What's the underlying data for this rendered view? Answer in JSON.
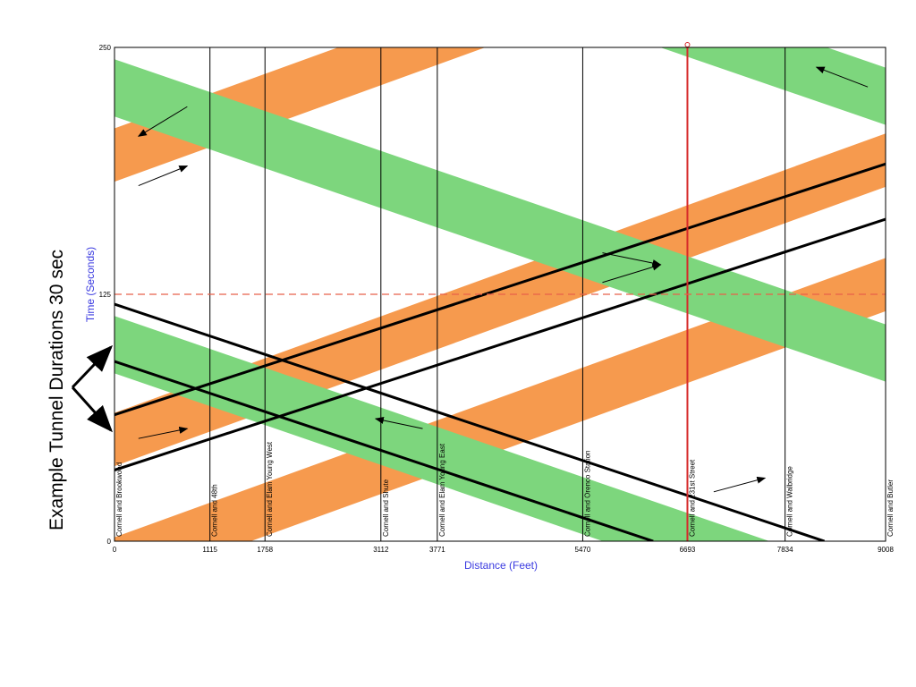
{
  "chart_data": {
    "type": "time-space diagram",
    "xlabel": "Distance (Feet)",
    "ylabel": "Time (Seconds)",
    "xlim": [
      0,
      9008
    ],
    "ylim": [
      0,
      250
    ],
    "y_ticks": [
      0,
      125,
      250
    ],
    "x_ticks": [
      0,
      1115,
      1758,
      3112,
      3771,
      5470,
      6693,
      7834,
      9008
    ],
    "intersections": [
      {
        "name": "Cornell and Brookwood",
        "x": 0
      },
      {
        "name": "Cornell and 48th",
        "x": 1115
      },
      {
        "name": "Cornell and Elam Young West",
        "x": 1758
      },
      {
        "name": "Cornell and Shute",
        "x": 3112
      },
      {
        "name": "Cornell and Elam Young East",
        "x": 3771
      },
      {
        "name": "Cornell and Orenco Station",
        "x": 5470
      },
      {
        "name": "Cornell and 231st Street",
        "x": 6693
      },
      {
        "name": "Cornell and Walbridge",
        "x": 7834
      },
      {
        "name": "Cornell and Butler",
        "x": 9008
      }
    ],
    "reference_time_line": 125,
    "selected_intersection_x": 6693,
    "bands": [
      {
        "direction": "eastbound",
        "color": "#f5913f",
        "slope": 0.0157,
        "lower_intercepts": [
          38,
          182,
          -25
        ],
        "width": 27
      },
      {
        "direction": "westbound",
        "color": "#7dd67d",
        "slope": -0.0149,
        "lower_intercepts": [
          215,
          85,
          345
        ],
        "width": 29
      }
    ],
    "highlighted_bands": [
      {
        "direction": "eastbound",
        "lower": [
          0,
          36,
          9008,
          163
        ],
        "upper": [
          0,
          64,
          9008,
          191
        ]
      },
      {
        "direction": "westbound",
        "lower": [
          0,
          91,
          6293,
          0
        ],
        "upper": [
          0,
          120,
          8293,
          0
        ]
      }
    ],
    "direction_arrows": [
      {
        "from": [
          280,
          180
        ],
        "to": [
          850,
          190
        ],
        "dir": "eastbound"
      },
      {
        "from": [
          850,
          220
        ],
        "to": [
          280,
          205
        ],
        "dir": "westbound"
      },
      {
        "from": [
          280,
          52
        ],
        "to": [
          850,
          57
        ],
        "dir": "eastbound"
      },
      {
        "from": [
          3600,
          57
        ],
        "to": [
          3050,
          62
        ],
        "dir": "westbound"
      },
      {
        "from": [
          5700,
          131
        ],
        "to": [
          6380,
          140
        ],
        "dir": "eastbound"
      },
      {
        "from": [
          5700,
          146
        ],
        "to": [
          6380,
          140
        ],
        "dir": "eastbound"
      },
      {
        "from": [
          7000,
          25
        ],
        "to": [
          7600,
          32
        ],
        "dir": "eastbound"
      },
      {
        "from": [
          8800,
          230
        ],
        "to": [
          8200,
          240
        ],
        "dir": "westbound"
      }
    ],
    "colors": {
      "eastbound": "#f5913f",
      "westbound": "#7dd67d",
      "reference": "#e8604a",
      "selected": "#d62a2a",
      "axis_title": "#3a3ae0"
    }
  },
  "annotation": {
    "text": "Example Tunnel Durations  30 sec"
  }
}
